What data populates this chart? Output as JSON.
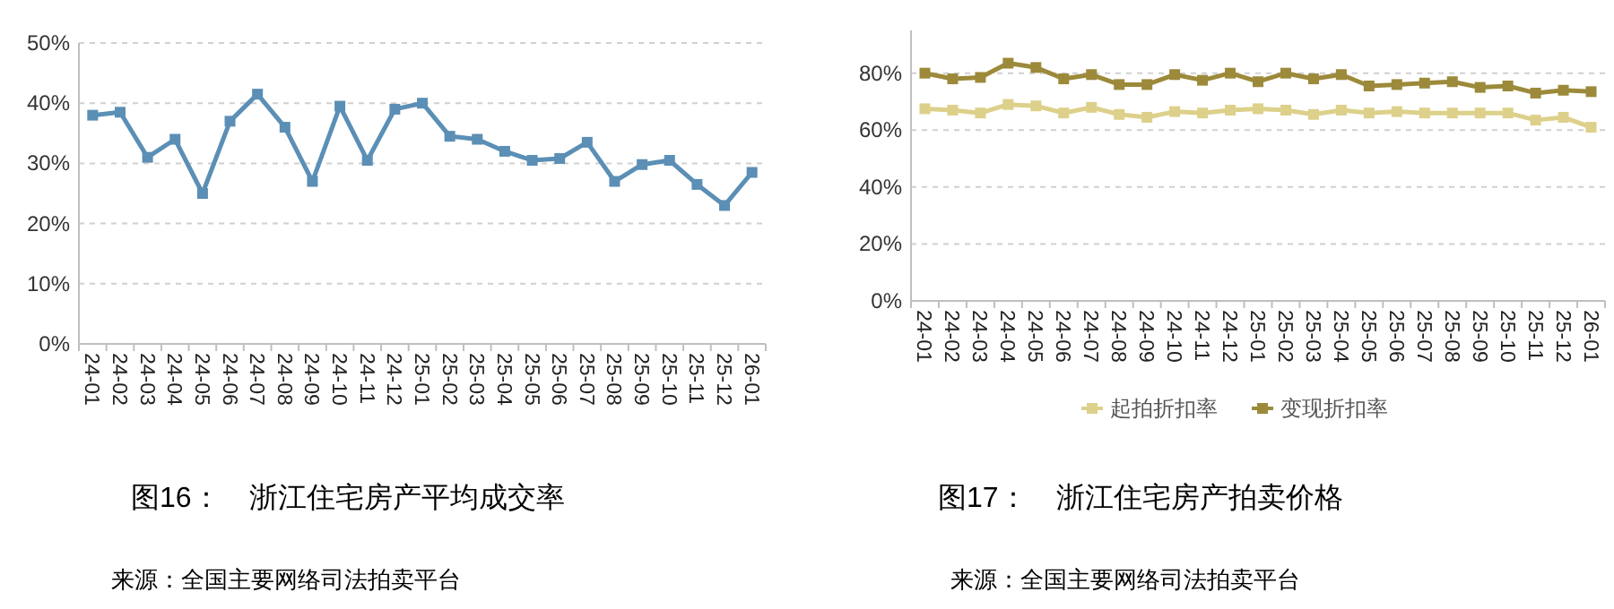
{
  "chart_data": [
    {
      "type": "line",
      "title": "图16：　浙江住宅房产平均成交率",
      "annotations": [
        "来源：全国主要网络司法拍卖平台"
      ],
      "categories": [
        "24-01",
        "24-02",
        "24-03",
        "24-04",
        "24-05",
        "24-06",
        "24-07",
        "24-08",
        "24-09",
        "24-10",
        "24-11",
        "24-12",
        "25-01",
        "25-02",
        "25-03",
        "25-04",
        "25-05",
        "25-06",
        "25-07",
        "25-08",
        "25-09",
        "25-10",
        "25-11",
        "25-12",
        "26-01"
      ],
      "series": [
        {
          "color": "#5b8fb5",
          "values": [
            38,
            38.5,
            31,
            34,
            25,
            37,
            41.5,
            36,
            27,
            39.5,
            30.5,
            39,
            40,
            34.5,
            34,
            32,
            30.5,
            30.8,
            33.5,
            27,
            29.8,
            30.5,
            26.5,
            23,
            28.5
          ]
        }
      ],
      "ylim": [
        0,
        50
      ],
      "yticks": [
        {
          "value": 0,
          "label": "0%"
        },
        {
          "value": 10,
          "label": "10%"
        },
        {
          "value": 20,
          "label": "20%"
        },
        {
          "value": 30,
          "label": "30%"
        },
        {
          "value": 40,
          "label": "40%"
        },
        {
          "value": 50,
          "label": "50%"
        }
      ],
      "grid": "y",
      "marker": "square",
      "legend": false
    },
    {
      "type": "line",
      "title": "图17：　浙江住宅房产拍卖价格",
      "annotations": [
        "来源：全国主要网络司法拍卖平台"
      ],
      "categories": [
        "24-01",
        "24-02",
        "24-03",
        "24-04",
        "24-05",
        "24-06",
        "24-07",
        "24-08",
        "24-09",
        "24-10",
        "24-11",
        "24-12",
        "25-01",
        "25-02",
        "25-03",
        "25-04",
        "25-05",
        "25-06",
        "25-07",
        "25-08",
        "25-09",
        "25-10",
        "25-11",
        "25-12",
        "26-01"
      ],
      "series": [
        {
          "name": "起拍折扣率",
          "color": "#ddd08a",
          "values": [
            67.5,
            67,
            66,
            69,
            68.5,
            66,
            68,
            65.5,
            64.5,
            66.5,
            66,
            67,
            67.5,
            67,
            65.5,
            67,
            66,
            66.5,
            66,
            66,
            66,
            66,
            63.5,
            64.5,
            61
          ]
        },
        {
          "name": "变现折扣率",
          "color": "#9c8a3a",
          "values": [
            80,
            78,
            78.5,
            83.5,
            82,
            78,
            79.5,
            76,
            76,
            79.5,
            77.5,
            80,
            77,
            80,
            78,
            79.5,
            75.5,
            76,
            76.5,
            77,
            75,
            75.5,
            73,
            74,
            73.5
          ]
        }
      ],
      "ylim": [
        0,
        95
      ],
      "yticks": [
        {
          "value": 0,
          "label": "0%"
        },
        {
          "value": 20,
          "label": "20%"
        },
        {
          "value": 40,
          "label": "40%"
        },
        {
          "value": 60,
          "label": "60%"
        },
        {
          "value": 80,
          "label": "80%"
        }
      ],
      "grid": "y",
      "marker": "square",
      "legend": "bottom"
    }
  ]
}
